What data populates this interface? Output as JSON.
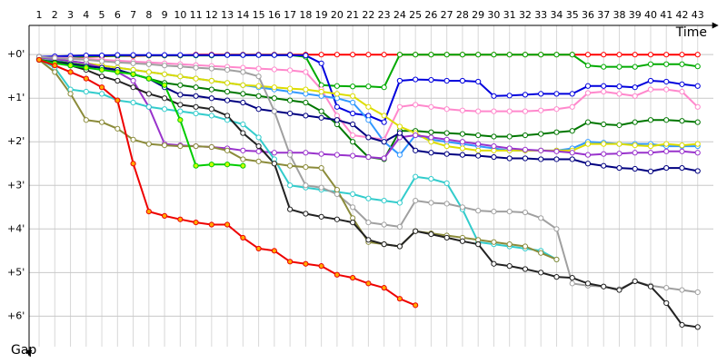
{
  "chart_data": {
    "type": "line",
    "x_label": "Time",
    "y_label": "Gap",
    "x": [
      1,
      2,
      3,
      4,
      5,
      6,
      7,
      8,
      9,
      10,
      11,
      12,
      13,
      14,
      15,
      16,
      17,
      18,
      19,
      20,
      21,
      22,
      23,
      24,
      25,
      26,
      27,
      28,
      29,
      30,
      31,
      32,
      33,
      34,
      35,
      36,
      37,
      38,
      39,
      40,
      41,
      42,
      43
    ],
    "xlim": [
      0.36,
      44.0
    ],
    "xticks": [
      1,
      2,
      3,
      4,
      5,
      6,
      7,
      8,
      9,
      10,
      11,
      12,
      13,
      14,
      15,
      16,
      17,
      18,
      19,
      20,
      21,
      22,
      23,
      24,
      25,
      26,
      27,
      28,
      29,
      30,
      31,
      32,
      33,
      34,
      35,
      36,
      37,
      38,
      39,
      40,
      41,
      42,
      43
    ],
    "ylim": [
      -0.67,
      6.7
    ],
    "yticks": [
      {
        "value": 0,
        "label": "+0'"
      },
      {
        "value": 1,
        "label": "+1'"
      },
      {
        "value": 2,
        "label": "+2'"
      },
      {
        "value": 3,
        "label": "+3'"
      },
      {
        "value": 4,
        "label": "+4'"
      },
      {
        "value": 5,
        "label": "+5'"
      },
      {
        "value": 6,
        "label": "+6'"
      }
    ],
    "y_inverted": true,
    "grid": true,
    "series": [
      {
        "color": "#ff0000",
        "values": [
          0.1,
          0.08,
          0.06,
          0.05,
          0.04,
          0.03,
          0.03,
          0.02,
          0.02,
          0.02,
          0,
          0,
          0,
          0,
          0,
          0,
          0,
          0,
          0,
          0,
          0,
          0,
          0,
          0,
          0,
          0,
          0,
          0,
          0,
          0,
          0,
          0,
          0,
          0,
          0,
          0,
          0,
          0,
          0,
          0,
          0,
          0,
          0
        ]
      },
      {
        "color": "#00aa00",
        "values": [
          0.08,
          0.06,
          0.05,
          0.04,
          0.03,
          0.03,
          0.02,
          0.02,
          0.02,
          0.02,
          0.02,
          0.02,
          0.01,
          0.01,
          0.01,
          0.01,
          0.01,
          0.05,
          0.7,
          0.72,
          0.73,
          0.73,
          0.75,
          0,
          0,
          0,
          0,
          0,
          0,
          0,
          0,
          0,
          0,
          0,
          0,
          0.25,
          0.28,
          0.28,
          0.28,
          0.22,
          0.22,
          0.22,
          0.27
        ]
      },
      {
        "color": "#0000dd",
        "values": [
          0.05,
          0.04,
          0.03,
          0.02,
          0.02,
          0.01,
          0.01,
          0.01,
          0.01,
          0.01,
          0.01,
          0.01,
          0.01,
          0.01,
          0.01,
          0.01,
          0.01,
          0.02,
          0.2,
          1.2,
          1.35,
          1.4,
          1.55,
          0.6,
          0.57,
          0.58,
          0.6,
          0.6,
          0.62,
          0.95,
          0.94,
          0.92,
          0.9,
          0.9,
          0.9,
          0.72,
          0.72,
          0.73,
          0.75,
          0.6,
          0.62,
          0.68,
          0.72
        ]
      },
      {
        "color": "#ff88cc",
        "values": [
          0.06,
          0.07,
          0.08,
          0.1,
          0.12,
          0.14,
          0.16,
          0.18,
          0.2,
          0.22,
          0.24,
          0.26,
          0.28,
          0.3,
          0.32,
          0.34,
          0.36,
          0.4,
          0.8,
          1.4,
          1.85,
          1.9,
          1.95,
          1.2,
          1.15,
          1.2,
          1.25,
          1.28,
          1.3,
          1.3,
          1.3,
          1.3,
          1.28,
          1.25,
          1.2,
          0.88,
          0.85,
          0.9,
          0.95,
          0.8,
          0.8,
          0.85,
          1.2
        ]
      },
      {
        "color": "#007700",
        "values": [
          0.1,
          0.15,
          0.2,
          0.25,
          0.3,
          0.35,
          0.45,
          0.55,
          0.65,
          0.7,
          0.75,
          0.8,
          0.85,
          0.9,
          0.95,
          1.0,
          1.05,
          1.1,
          1.3,
          1.6,
          2.0,
          2.35,
          2.4,
          1.75,
          1.75,
          1.78,
          1.8,
          1.82,
          1.85,
          1.88,
          1.88,
          1.85,
          1.82,
          1.78,
          1.75,
          1.55,
          1.6,
          1.62,
          1.55,
          1.5,
          1.5,
          1.52,
          1.55
        ]
      },
      {
        "color": "#3399ff",
        "values": [
          0.1,
          0.12,
          0.15,
          0.2,
          0.25,
          0.3,
          0.35,
          0.4,
          0.45,
          0.5,
          0.55,
          0.6,
          0.65,
          0.7,
          0.75,
          0.8,
          0.85,
          0.9,
          0.95,
          1.0,
          1.1,
          1.5,
          2.0,
          2.3,
          1.85,
          1.95,
          2.0,
          2.05,
          2.1,
          2.15,
          2.2,
          2.2,
          2.2,
          2.2,
          2.15,
          2.0,
          2.02,
          2.05,
          2.05,
          2.05,
          2.1,
          2.1,
          2.1
        ]
      },
      {
        "color": "#dddd00",
        "values": [
          0.08,
          0.1,
          0.15,
          0.2,
          0.25,
          0.3,
          0.35,
          0.4,
          0.45,
          0.5,
          0.55,
          0.6,
          0.65,
          0.7,
          0.72,
          0.75,
          0.78,
          0.8,
          0.85,
          0.9,
          0.95,
          1.2,
          1.4,
          1.65,
          1.8,
          2.0,
          2.1,
          2.15,
          2.2,
          2.2,
          2.2,
          2.2,
          2.2,
          2.2,
          2.2,
          2.05,
          2.05,
          2.05,
          2.08,
          2.1,
          2.05,
          2.08,
          2.05
        ]
      },
      {
        "color": "#9933cc",
        "values": [
          0.07,
          0.1,
          0.15,
          0.2,
          0.3,
          0.4,
          0.6,
          1.2,
          2.05,
          2.08,
          2.1,
          2.12,
          2.15,
          2.2,
          2.22,
          2.25,
          2.25,
          2.25,
          2.28,
          2.3,
          2.32,
          2.35,
          2.38,
          1.9,
          1.85,
          1.9,
          1.95,
          2.0,
          2.05,
          2.1,
          2.15,
          2.18,
          2.2,
          2.22,
          2.25,
          2.3,
          2.28,
          2.27,
          2.25,
          2.25,
          2.22,
          2.22,
          2.25
        ]
      },
      {
        "color": "#000080",
        "values": [
          0.12,
          0.18,
          0.22,
          0.27,
          0.3,
          0.35,
          0.45,
          0.55,
          0.75,
          0.92,
          0.95,
          1.0,
          1.05,
          1.1,
          1.25,
          1.3,
          1.35,
          1.4,
          1.45,
          1.5,
          1.6,
          1.9,
          2.0,
          1.8,
          2.2,
          2.25,
          2.28,
          2.3,
          2.32,
          2.35,
          2.38,
          2.38,
          2.4,
          2.4,
          2.4,
          2.5,
          2.55,
          2.6,
          2.62,
          2.68,
          2.6,
          2.6,
          2.67
        ]
      },
      {
        "color": "#33cccc",
        "values": [
          0.1,
          0.3,
          0.8,
          0.85,
          0.9,
          1.05,
          1.1,
          1.2,
          1.25,
          1.3,
          1.35,
          1.4,
          1.5,
          1.6,
          1.9,
          2.4,
          3.0,
          3.05,
          3.1,
          3.15,
          3.2,
          3.3,
          3.35,
          3.4,
          2.8,
          2.85,
          2.95,
          3.55,
          4.3,
          4.35,
          4.4,
          4.45,
          4.5,
          4.7,
          null,
          null,
          null,
          null,
          null,
          null,
          null,
          null,
          null
        ]
      },
      {
        "color": "#a0a0a0",
        "values": [
          0.05,
          0.08,
          0.1,
          0.12,
          0.15,
          0.18,
          0.2,
          0.22,
          0.25,
          0.27,
          0.3,
          0.32,
          0.35,
          0.4,
          0.5,
          1.3,
          2.3,
          3.0,
          3.05,
          3.2,
          3.5,
          3.85,
          3.9,
          3.95,
          3.35,
          3.4,
          3.42,
          3.5,
          3.58,
          3.6,
          3.6,
          3.62,
          3.75,
          4.0,
          5.25,
          5.3,
          5.32,
          5.38,
          5.2,
          5.3,
          5.35,
          5.4,
          5.45
        ]
      },
      {
        "color": "#8b8b3a",
        "values": [
          0.12,
          0.4,
          0.9,
          1.5,
          1.55,
          1.7,
          1.95,
          2.05,
          2.08,
          2.1,
          2.1,
          2.12,
          2.2,
          2.4,
          2.45,
          2.5,
          2.55,
          2.58,
          2.6,
          3.1,
          3.75,
          4.3,
          4.35,
          4.4,
          4.05,
          4.1,
          4.15,
          4.2,
          4.25,
          4.3,
          4.35,
          4.4,
          4.55,
          4.7,
          null,
          null,
          null,
          null,
          null,
          null,
          null,
          null,
          null
        ]
      },
      {
        "color": "#222222",
        "values": [
          0.12,
          0.18,
          0.25,
          0.35,
          0.5,
          0.6,
          0.75,
          0.9,
          1.0,
          1.15,
          1.2,
          1.25,
          1.4,
          1.8,
          2.1,
          2.5,
          3.55,
          3.65,
          3.72,
          3.78,
          3.85,
          4.25,
          4.35,
          4.4,
          4.05,
          4.12,
          4.2,
          4.28,
          4.35,
          4.8,
          4.85,
          4.92,
          5.0,
          5.1,
          5.12,
          5.25,
          5.32,
          5.4,
          5.2,
          5.32,
          5.7,
          6.2,
          6.25
        ]
      },
      {
        "color": "#00cc00",
        "marker_color": "#ccff00",
        "values": [
          0.12,
          0.2,
          0.25,
          0.3,
          0.35,
          0.4,
          0.45,
          0.55,
          0.7,
          1.5,
          2.55,
          2.52,
          2.52,
          2.55,
          null,
          null,
          null,
          null,
          null,
          null,
          null,
          null,
          null,
          null,
          null,
          null,
          null,
          null,
          null,
          null,
          null,
          null,
          null,
          null,
          null,
          null,
          null,
          null,
          null,
          null,
          null,
          null,
          null
        ]
      },
      {
        "color": "#ee0000",
        "marker_color": "#ffaa00",
        "values": [
          0.12,
          0.25,
          0.4,
          0.55,
          0.75,
          1.05,
          2.5,
          3.6,
          3.7,
          3.78,
          3.85,
          3.9,
          3.9,
          4.2,
          4.45,
          4.5,
          4.75,
          4.8,
          4.85,
          5.05,
          5.12,
          5.25,
          5.35,
          5.6,
          5.75,
          null,
          null,
          null,
          null,
          null,
          null,
          null,
          null,
          null,
          null,
          null,
          null,
          null,
          null,
          null,
          null,
          null,
          null
        ]
      }
    ]
  }
}
